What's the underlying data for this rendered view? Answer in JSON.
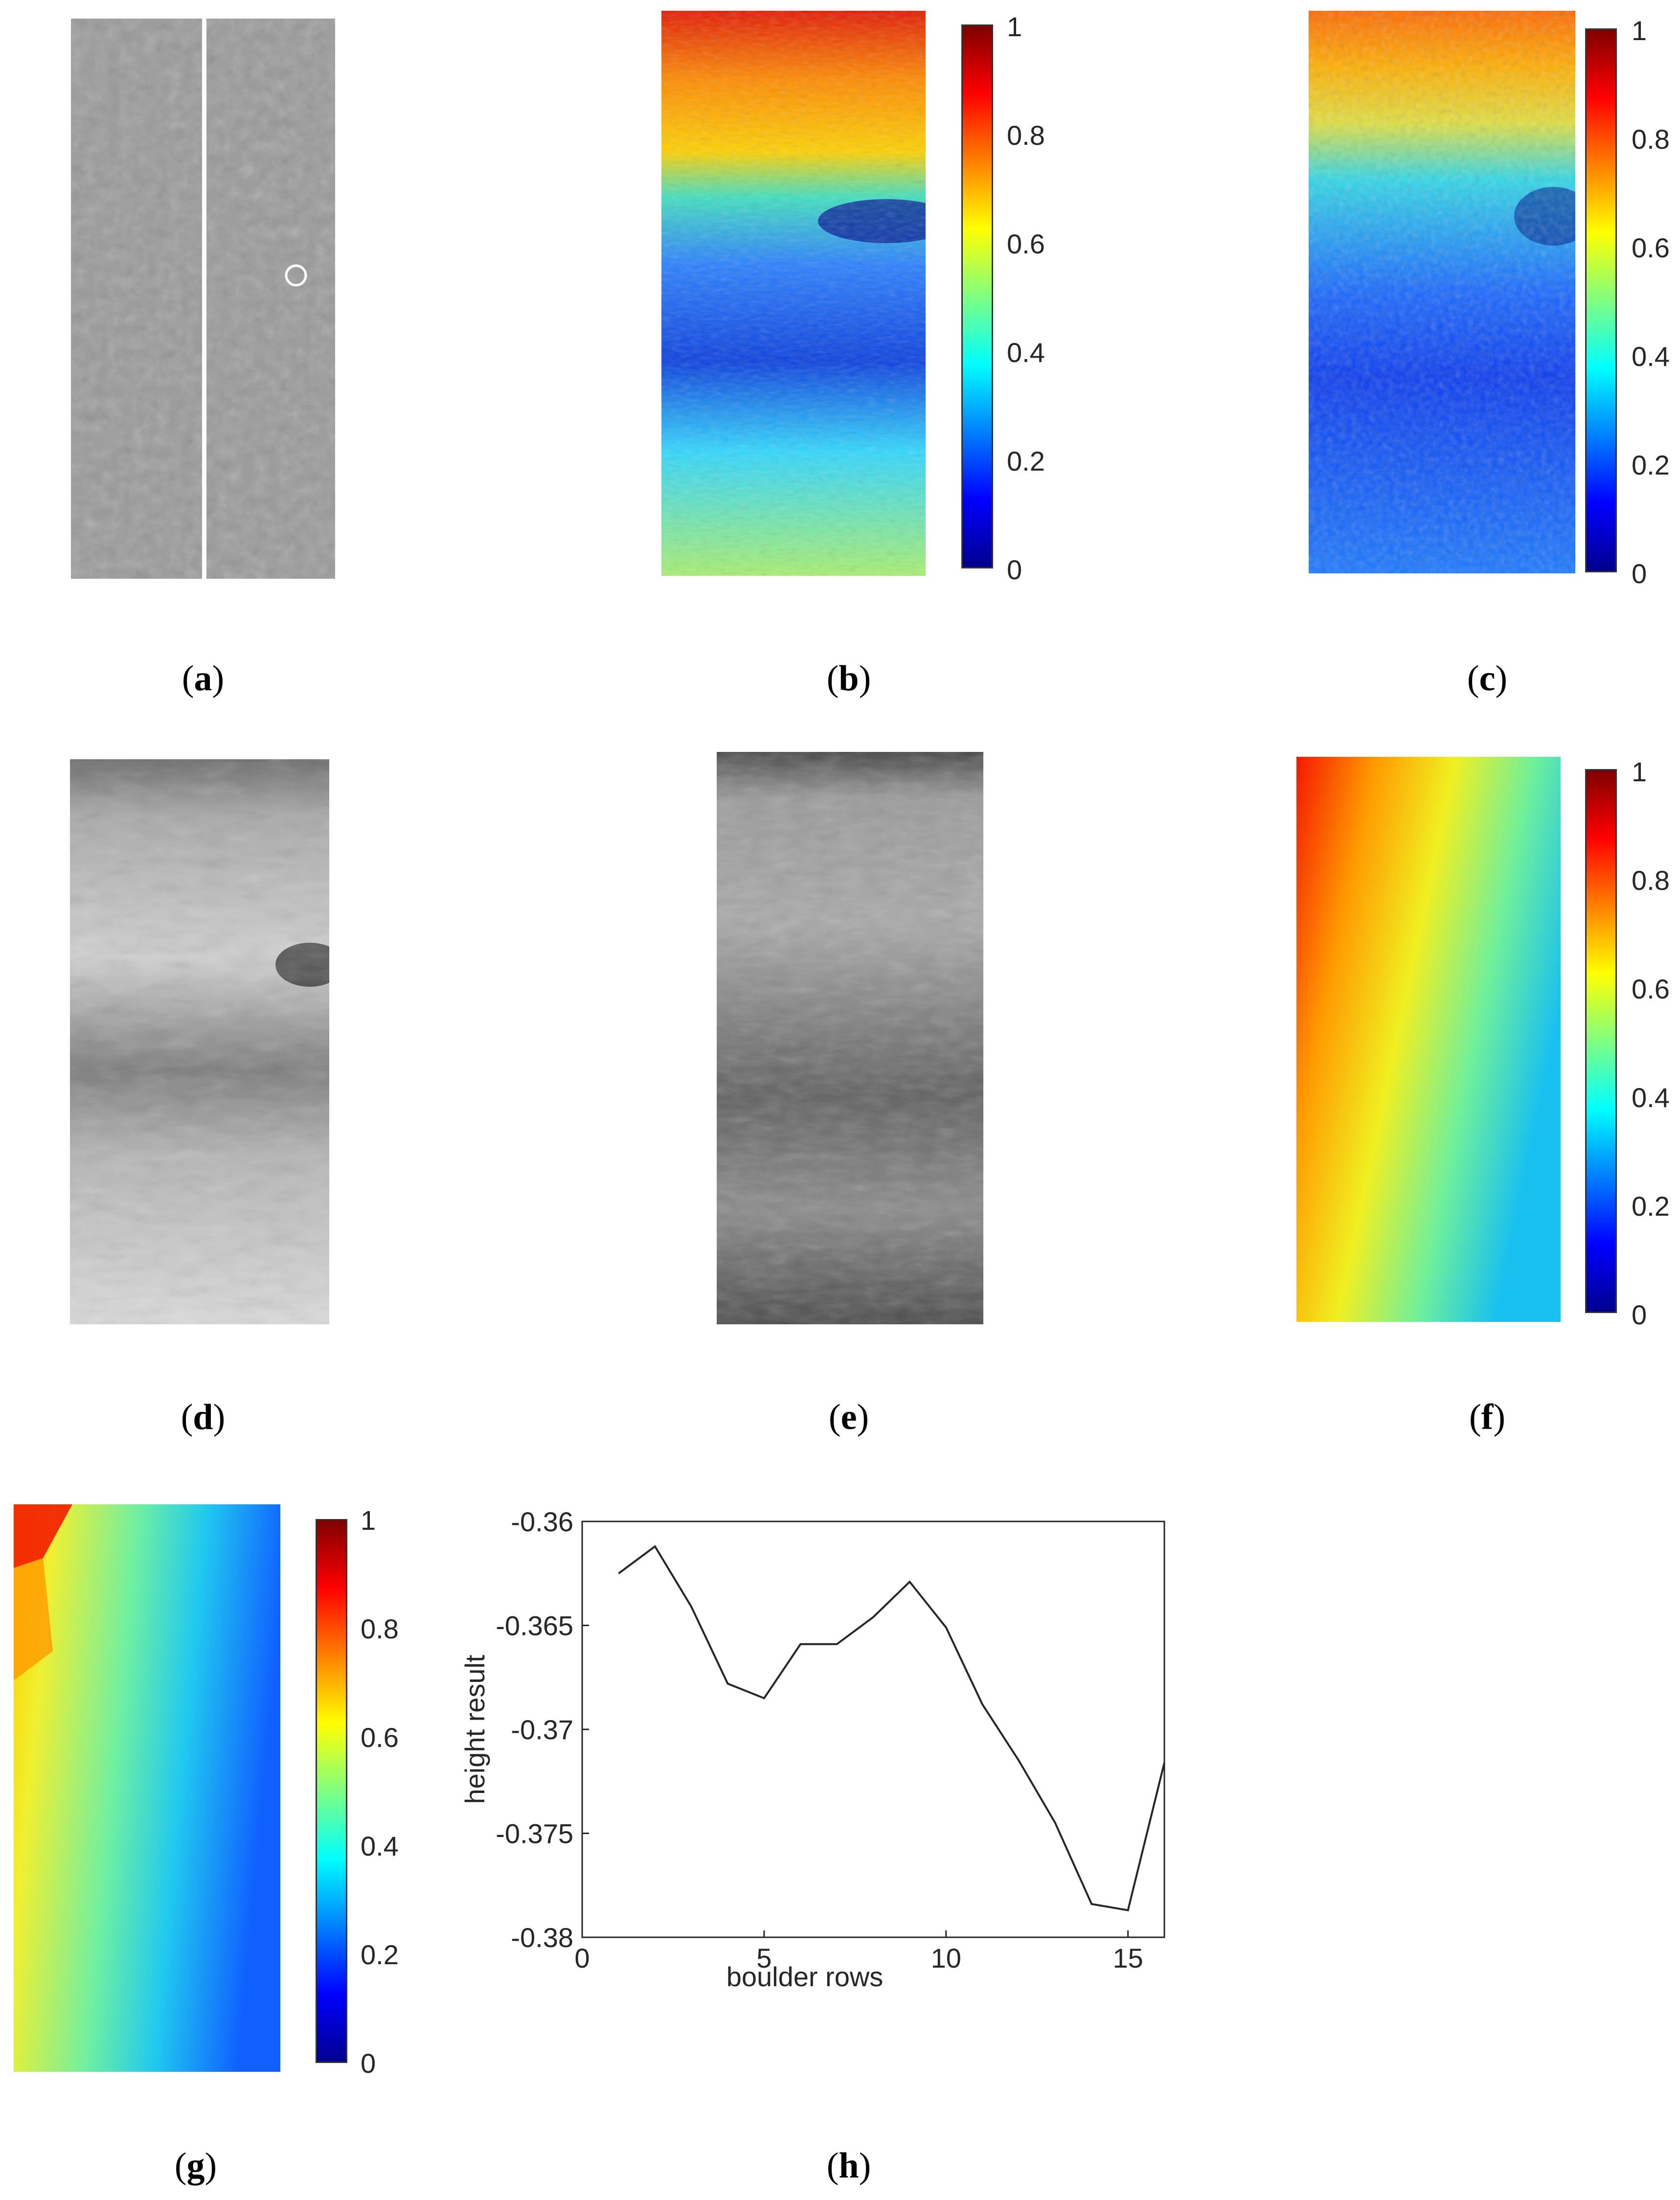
{
  "panels": {
    "a": {
      "caption": "a"
    },
    "b": {
      "caption": "b"
    },
    "c": {
      "caption": "c"
    },
    "d": {
      "caption": "d"
    },
    "e": {
      "caption": "e"
    },
    "f": {
      "caption": "f"
    },
    "g": {
      "caption": "g"
    },
    "h": {
      "caption": "h"
    }
  },
  "colorbar": {
    "ticks": [
      "0",
      "0.2",
      "0.4",
      "0.6",
      "0.8",
      "1"
    ]
  },
  "chart_data": {
    "type": "line",
    "xlabel": "boulder rows",
    "ylabel": "height result",
    "xlim": [
      0,
      16
    ],
    "ylim": [
      -0.38,
      -0.36
    ],
    "xticks": [
      "0",
      "5",
      "10",
      "15"
    ],
    "yticks": [
      "-0.36",
      "-0.365",
      "-0.37",
      "-0.375",
      "-0.38"
    ],
    "x": [
      1,
      2,
      3,
      4,
      5,
      6,
      7,
      8,
      9,
      10,
      11,
      12,
      13,
      14,
      15,
      16
    ],
    "y": [
      -0.3625,
      -0.3612,
      -0.3641,
      -0.3678,
      -0.3685,
      -0.3659,
      -0.3659,
      -0.3646,
      -0.3629,
      -0.3651,
      -0.3688,
      -0.3715,
      -0.3745,
      -0.3784,
      -0.3787,
      -0.3716
    ],
    "grid": false,
    "series_color": "#262626"
  }
}
